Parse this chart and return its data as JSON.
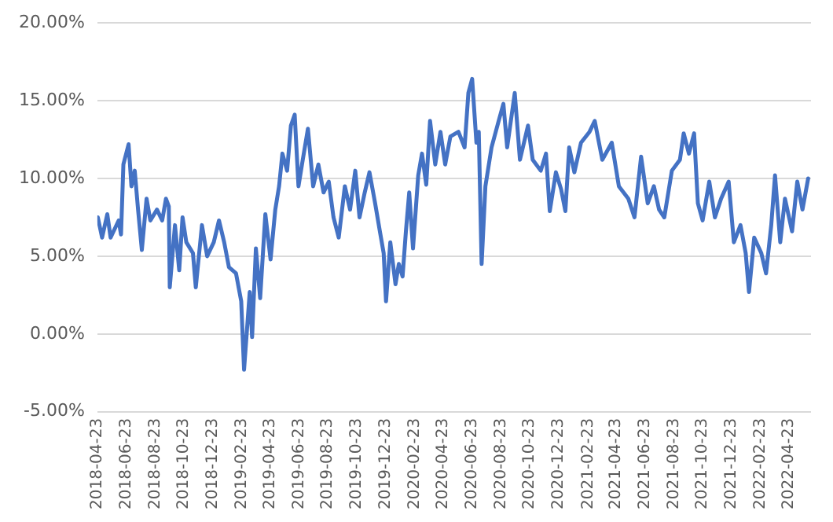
{
  "chart_data": {
    "type": "line",
    "grid": "y",
    "legend": false,
    "marker": "none",
    "line_style": "solid",
    "xlim": [
      "2018-04-23",
      "2022-06-09"
    ],
    "xticks": [
      "2018-04-23",
      "2018-06-23",
      "2018-08-23",
      "2018-10-23",
      "2018-12-23",
      "2019-02-23",
      "2019-04-23",
      "2019-06-23",
      "2019-08-23",
      "2019-10-23",
      "2019-12-23",
      "2020-02-23",
      "2020-04-23",
      "2020-06-23",
      "2020-08-23",
      "2020-10-23",
      "2020-12-23",
      "2021-02-23",
      "2021-04-23",
      "2021-06-23",
      "2021-08-23",
      "2021-10-23",
      "2021-12-23",
      "2022-02-23",
      "2022-04-23"
    ],
    "ylim": [
      -5,
      20
    ],
    "yticks": [
      {
        "value": -5,
        "label": "-5.00%"
      },
      {
        "value": 0,
        "label": "0.00%"
      },
      {
        "value": 5,
        "label": "5.00%"
      },
      {
        "value": 10,
        "label": "10.00%"
      },
      {
        "value": 15,
        "label": "15.00%"
      },
      {
        "value": 20,
        "label": "20.00%"
      }
    ],
    "x": [
      "2018-04-24",
      "2018-05-03",
      "2018-05-14",
      "2018-05-21",
      "2018-06-07",
      "2018-06-12",
      "2018-06-17",
      "2018-06-28",
      "2018-07-04",
      "2018-07-11",
      "2018-07-18",
      "2018-07-26",
      "2018-08-05",
      "2018-08-13",
      "2018-08-27",
      "2018-09-07",
      "2018-09-15",
      "2018-09-21",
      "2018-09-23",
      "2018-10-04",
      "2018-10-13",
      "2018-10-20",
      "2018-10-28",
      "2018-11-11",
      "2018-11-17",
      "2018-11-30",
      "2018-12-11",
      "2018-12-25",
      "2019-01-05",
      "2019-01-16",
      "2019-01-26",
      "2019-02-10",
      "2019-02-21",
      "2019-02-27",
      "2019-03-11",
      "2019-03-16",
      "2019-03-24",
      "2019-04-02",
      "2019-04-13",
      "2019-04-24",
      "2019-05-04",
      "2019-05-12",
      "2019-05-19",
      "2019-05-29",
      "2019-06-06",
      "2019-06-14",
      "2019-06-22",
      "2019-07-01",
      "2019-07-12",
      "2019-07-23",
      "2019-08-03",
      "2019-08-14",
      "2019-08-25",
      "2019-09-04",
      "2019-09-15",
      "2019-09-28",
      "2019-10-09",
      "2019-10-20",
      "2019-10-29",
      "2019-11-09",
      "2019-11-19",
      "2019-12-01",
      "2019-12-11",
      "2019-12-19",
      "2019-12-24",
      "2020-01-02",
      "2020-01-13",
      "2020-01-20",
      "2020-01-28",
      "2020-02-04",
      "2020-02-11",
      "2020-02-19",
      "2020-03-01",
      "2020-03-09",
      "2020-03-18",
      "2020-03-26",
      "2020-04-06",
      "2020-04-17",
      "2020-04-27",
      "2020-05-08",
      "2020-05-25",
      "2020-06-07",
      "2020-06-15",
      "2020-06-23",
      "2020-07-02",
      "2020-07-07",
      "2020-07-13",
      "2020-07-21",
      "2020-08-03",
      "2020-08-18",
      "2020-08-28",
      "2020-09-05",
      "2020-09-21",
      "2020-10-02",
      "2020-10-19",
      "2020-10-29",
      "2020-11-15",
      "2020-11-26",
      "2020-12-04",
      "2020-12-17",
      "2020-12-28",
      "2021-01-06",
      "2021-01-14",
      "2021-01-25",
      "2021-02-08",
      "2021-02-26",
      "2021-03-09",
      "2021-03-25",
      "2021-04-14",
      "2021-04-29",
      "2021-05-19",
      "2021-06-01",
      "2021-06-15",
      "2021-06-29",
      "2021-07-12",
      "2021-07-23",
      "2021-08-03",
      "2021-08-19",
      "2021-09-05",
      "2021-09-13",
      "2021-09-24",
      "2021-10-05",
      "2021-10-13",
      "2021-10-23",
      "2021-11-06",
      "2021-11-18",
      "2021-12-01",
      "2021-12-17",
      "2021-12-28",
      "2022-01-11",
      "2022-01-22",
      "2022-01-29",
      "2022-02-09",
      "2022-02-24",
      "2022-03-06",
      "2022-03-17",
      "2022-03-25",
      "2022-04-05",
      "2022-04-15",
      "2022-04-30",
      "2022-05-11",
      "2022-05-22",
      "2022-06-03"
    ],
    "series": [
      {
        "color": "#4472c4",
        "values": [
          7.5,
          6.2,
          7.7,
          6.2,
          7.3,
          6.4,
          10.9,
          12.2,
          9.5,
          10.5,
          8.0,
          5.4,
          8.7,
          7.3,
          8.0,
          7.3,
          8.7,
          8.2,
          3.0,
          7.0,
          4.1,
          7.5,
          5.9,
          5.2,
          3.0,
          7.0,
          5.0,
          5.9,
          7.3,
          5.9,
          4.3,
          3.9,
          2.1,
          -2.3,
          2.7,
          -0.2,
          5.5,
          2.3,
          7.7,
          4.8,
          8.0,
          9.5,
          11.6,
          10.5,
          13.4,
          14.1,
          9.5,
          11.2,
          13.2,
          9.5,
          10.9,
          9.1,
          9.8,
          7.5,
          6.2,
          9.5,
          8.0,
          10.5,
          7.5,
          9.1,
          10.4,
          8.4,
          6.6,
          5.2,
          2.1,
          5.9,
          3.2,
          4.5,
          3.7,
          6.6,
          9.1,
          5.5,
          10.2,
          11.6,
          9.6,
          13.7,
          10.9,
          13.0,
          10.9,
          12.7,
          13.0,
          12.0,
          15.5,
          16.4,
          12.3,
          13.0,
          4.5,
          9.5,
          12.0,
          13.7,
          14.8,
          12.0,
          15.5,
          11.2,
          13.4,
          11.2,
          10.5,
          11.6,
          7.9,
          10.4,
          9.3,
          7.9,
          12.0,
          10.4,
          12.3,
          13.0,
          13.7,
          11.2,
          12.3,
          9.5,
          8.7,
          7.5,
          11.4,
          8.4,
          9.5,
          8.0,
          7.5,
          10.5,
          11.2,
          12.9,
          11.6,
          12.9,
          8.4,
          7.3,
          9.8,
          7.5,
          8.7,
          9.8,
          5.9,
          7.0,
          5.2,
          2.7,
          6.2,
          5.2,
          3.9,
          7.0,
          10.2,
          5.9,
          8.7,
          6.6,
          9.8,
          8.0,
          10.0
        ]
      }
    ]
  }
}
